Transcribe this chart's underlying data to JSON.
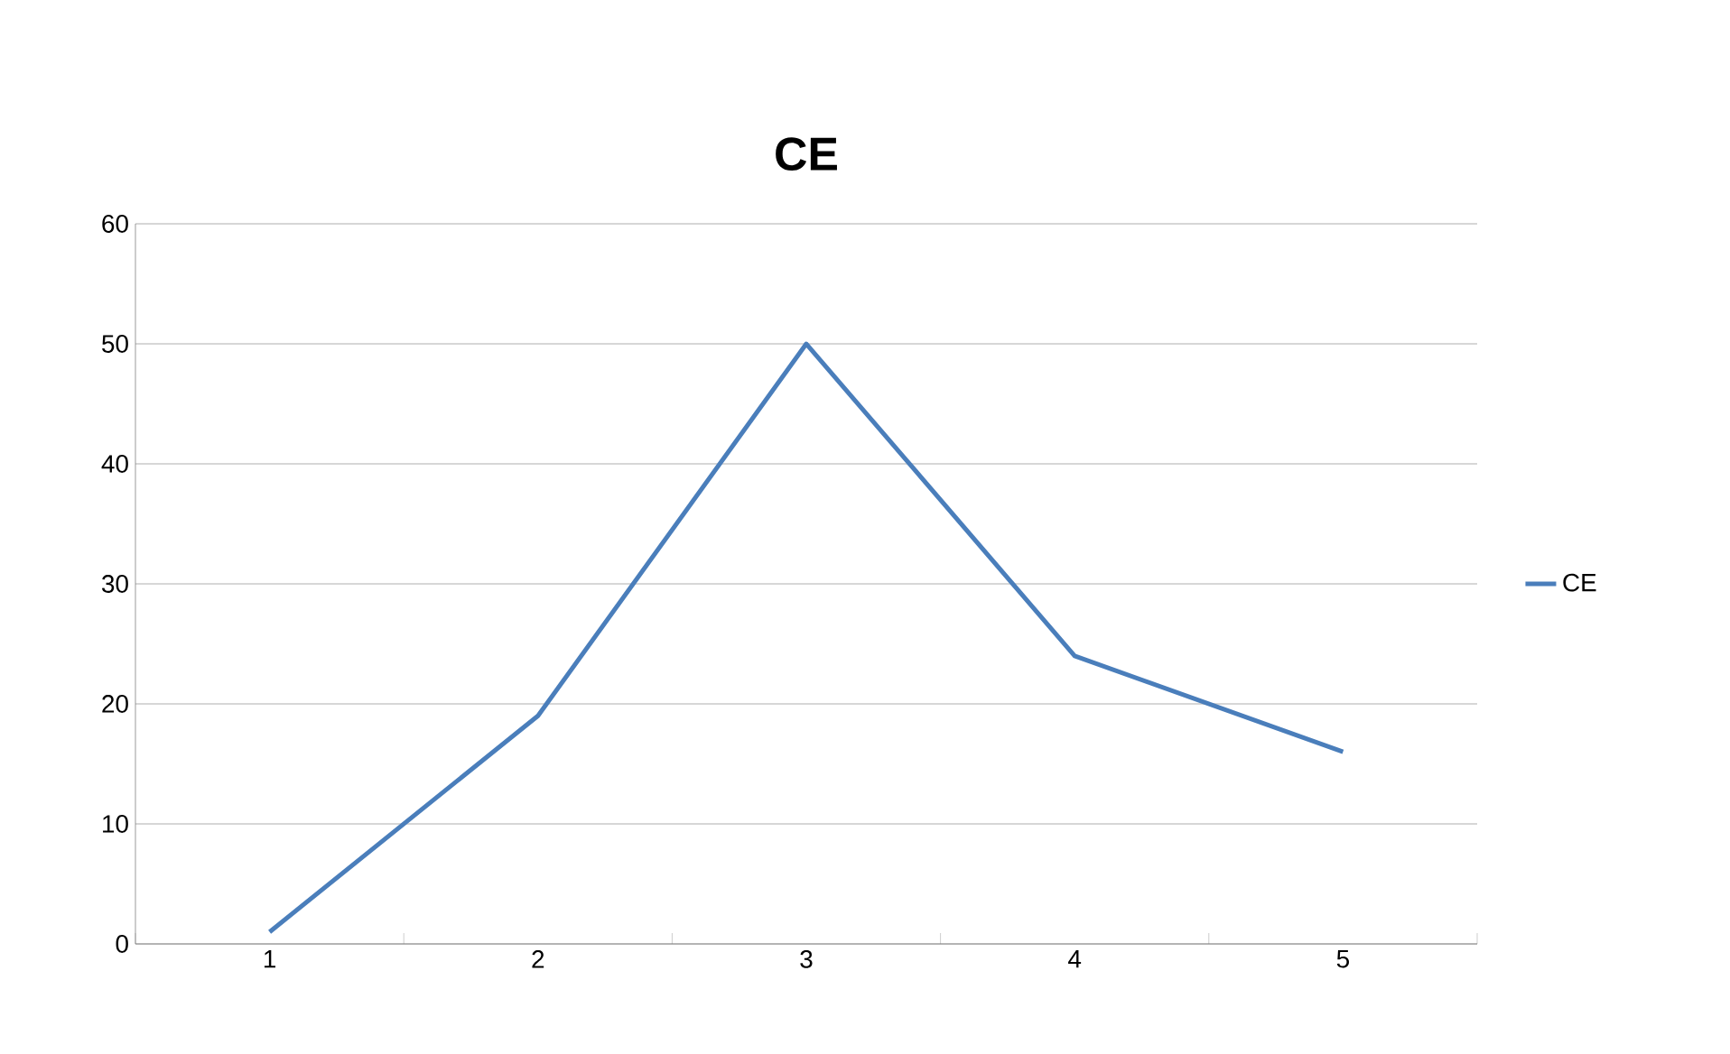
{
  "chart_data": {
    "type": "line",
    "title": "CE",
    "categories": [
      "1",
      "2",
      "3",
      "4",
      "5"
    ],
    "series": [
      {
        "name": "CE",
        "color": "#4a7ebb",
        "values": [
          1,
          19,
          50,
          24,
          16
        ]
      }
    ],
    "ylim": [
      0,
      60
    ],
    "yticks": [
      0,
      10,
      20,
      30,
      40,
      50,
      60
    ],
    "grid": "y",
    "legend": "right"
  }
}
